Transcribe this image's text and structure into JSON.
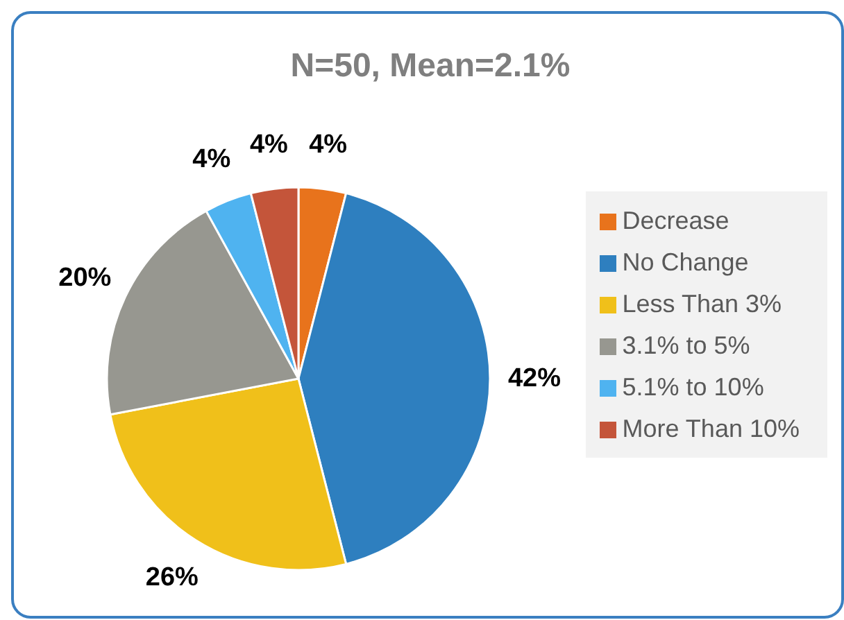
{
  "chart_data": {
    "type": "pie",
    "title": "N=50, Mean=2.1%",
    "categories": [
      "Decrease",
      "No Change",
      "Less Than 3%",
      "3.1% to 5%",
      "5.1% to 10%",
      "More Than 10%"
    ],
    "values": [
      4,
      42,
      26,
      20,
      4,
      4
    ],
    "colors": [
      "#e8731c",
      "#2e7fbf",
      "#f0c01a",
      "#979790",
      "#4fb3f0",
      "#c4553a"
    ],
    "value_labels": [
      "4%",
      "42%",
      "26%",
      "20%",
      "4%",
      "4%"
    ],
    "legend": "right"
  }
}
